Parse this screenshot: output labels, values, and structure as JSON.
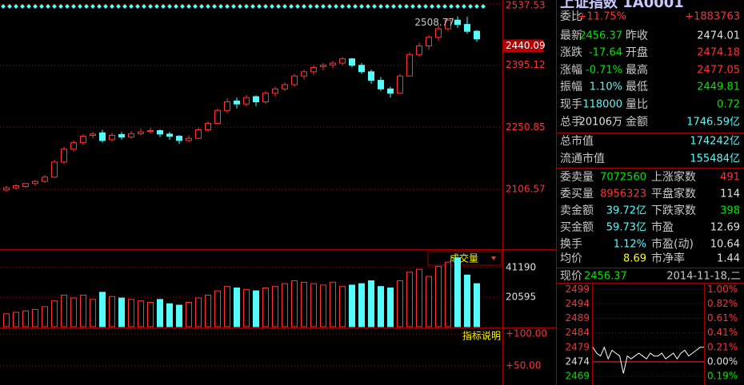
{
  "main": {
    "peak_label": "2508.77",
    "cursor_price": 2440.09,
    "ylim": [
      1971,
      2537.53
    ],
    "yticks": [
      2537.53,
      2395.12,
      2250.85,
      2106.57
    ],
    "candles": [
      [
        2105,
        2115,
        2100,
        2110
      ],
      [
        2110,
        2118,
        2106,
        2115
      ],
      [
        2113,
        2122,
        2110,
        2120
      ],
      [
        2120,
        2128,
        2115,
        2125
      ],
      [
        2125,
        2140,
        2122,
        2135
      ],
      [
        2135,
        2175,
        2133,
        2170
      ],
      [
        2170,
        2205,
        2165,
        2200
      ],
      [
        2200,
        2220,
        2195,
        2215
      ],
      [
        2215,
        2235,
        2210,
        2230
      ],
      [
        2232,
        2240,
        2225,
        2235
      ],
      [
        2238,
        2245,
        2215,
        2220
      ],
      [
        2222,
        2238,
        2218,
        2232
      ],
      [
        2234,
        2240,
        2222,
        2228
      ],
      [
        2228,
        2242,
        2225,
        2236
      ],
      [
        2236,
        2248,
        2232,
        2240
      ],
      [
        2242,
        2250,
        2236,
        2243
      ],
      [
        2243,
        2246,
        2228,
        2235
      ],
      [
        2235,
        2240,
        2222,
        2230
      ],
      [
        2230,
        2233,
        2212,
        2220
      ],
      [
        2220,
        2232,
        2216,
        2225
      ],
      [
        2225,
        2250,
        2223,
        2245
      ],
      [
        2245,
        2265,
        2240,
        2260
      ],
      [
        2260,
        2295,
        2258,
        2290
      ],
      [
        2290,
        2318,
        2285,
        2310
      ],
      [
        2312,
        2320,
        2295,
        2305
      ],
      [
        2305,
        2326,
        2300,
        2320
      ],
      [
        2322,
        2325,
        2300,
        2310
      ],
      [
        2310,
        2335,
        2305,
        2330
      ],
      [
        2330,
        2345,
        2322,
        2340
      ],
      [
        2340,
        2355,
        2335,
        2350
      ],
      [
        2350,
        2375,
        2345,
        2370
      ],
      [
        2370,
        2385,
        2362,
        2380
      ],
      [
        2380,
        2395,
        2372,
        2390
      ],
      [
        2392,
        2400,
        2383,
        2395
      ],
      [
        2396,
        2405,
        2388,
        2400
      ],
      [
        2400,
        2414,
        2395,
        2410
      ],
      [
        2410,
        2412,
        2390,
        2395
      ],
      [
        2395,
        2400,
        2375,
        2380
      ],
      [
        2380,
        2385,
        2352,
        2360
      ],
      [
        2360,
        2368,
        2335,
        2340
      ],
      [
        2340,
        2345,
        2320,
        2330
      ],
      [
        2330,
        2375,
        2328,
        2370
      ],
      [
        2370,
        2425,
        2368,
        2420
      ],
      [
        2420,
        2448,
        2415,
        2440
      ],
      [
        2440,
        2465,
        2432,
        2460
      ],
      [
        2460,
        2488,
        2452,
        2480
      ],
      [
        2480,
        2505,
        2475,
        2500
      ],
      [
        2500,
        2508.77,
        2482,
        2490
      ],
      [
        2490,
        2508,
        2468,
        2474.01
      ],
      [
        2474.18,
        2477.05,
        2449.81,
        2456.37
      ]
    ]
  },
  "volume": {
    "label": "成交量",
    "ylim": [
      0,
      53993
    ],
    "yticks": [
      41190,
      20595
    ],
    "values": [
      9000,
      10000,
      11000,
      12000,
      14000,
      18000,
      22000,
      20000,
      22000,
      19000,
      24000,
      21000,
      20000,
      19000,
      18000,
      17000,
      19000,
      16000,
      15000,
      17000,
      20000,
      22000,
      25000,
      28000,
      27000,
      26000,
      25000,
      27000,
      28000,
      30000,
      32000,
      31000,
      30000,
      29000,
      31000,
      28000,
      29000,
      30000,
      32000,
      28000,
      27000,
      32000,
      38000,
      40000,
      35000,
      42000,
      45000,
      48000,
      36000,
      30000
    ]
  },
  "indicator": {
    "label": "指标说明",
    "ylim": [
      20,
      106
    ],
    "yticks": [
      {
        "value": 100,
        "label": "+100.00"
      },
      {
        "value": 50,
        "label": "+50.00"
      }
    ]
  },
  "quote": {
    "title": "上证指数 1A0001",
    "rows": [
      [
        "委比",
        "+11.75%",
        "+1883763"
      ],
      [
        "最新",
        "2456.37",
        "昨收",
        "2474.01"
      ],
      [
        "涨跌",
        "-17.64",
        "开盘",
        "2474.18"
      ],
      [
        "涨幅",
        "-0.71%",
        "最高",
        "2477.05"
      ],
      [
        "振幅",
        "1.10%",
        "最低",
        "2449.81"
      ],
      [
        "现手",
        "118000",
        "量比",
        "0.72"
      ],
      [
        "总手",
        "20106万",
        "金额",
        "1746.59亿"
      ],
      [
        "总市值",
        "174242亿"
      ],
      [
        "流通市值",
        "155484亿"
      ],
      [
        "委卖量",
        "7072560",
        "上涨家数",
        "491"
      ],
      [
        "委买量",
        "8956323",
        "平盘家数",
        "114"
      ],
      [
        "卖金额",
        "39.72亿",
        "下跌家数",
        "398"
      ],
      [
        "买金额",
        "59.73亿",
        "市盈",
        "12.69"
      ],
      [
        "换手",
        "1.12%",
        "市盈(动)",
        "10.64"
      ],
      [
        "均价",
        "8.69",
        "市净率",
        "1.44"
      ]
    ]
  },
  "intraday": {
    "price_label": "现价",
    "price": "2456.37",
    "date": "2014-11-18,二",
    "ylim": [
      2466,
      2501
    ],
    "yticks": [
      2499,
      2494,
      2489,
      2484,
      2479,
      2474,
      2469
    ],
    "pct_labels": [
      "1.00%",
      "0.82%",
      "0.61%",
      "0.41%",
      "0.21%",
      "0.00%",
      "0.19%"
    ],
    "values": [
      2479,
      2477,
      2476,
      2479,
      2475,
      2478,
      2477,
      2476,
      2470,
      2476,
      2475,
      2476,
      2477,
      2476,
      2475,
      2477,
      2476,
      2476,
      2477,
      2475,
      2476,
      2477,
      2475,
      2477,
      2478,
      2476,
      2477,
      2478,
      2479,
      2479
    ]
  }
}
